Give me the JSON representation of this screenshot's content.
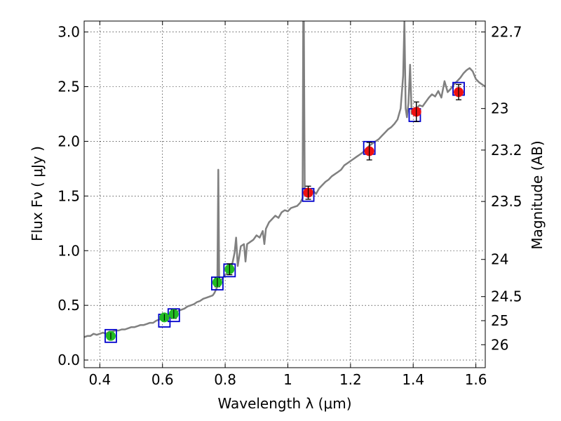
{
  "chart_data": {
    "type": "scatter",
    "xlabel": "Wavelength  λ (μm)",
    "ylabel_left": "Flux  Fν  ( μJy )",
    "ylabel_right": "Magnitude (AB)",
    "xlim": [
      0.35,
      1.63
    ],
    "ylim": [
      -0.07,
      3.1
    ],
    "grid": true,
    "x_ticks": [
      {
        "value": 0.4,
        "label": "0.4"
      },
      {
        "value": 0.6,
        "label": "0.6"
      },
      {
        "value": 0.8,
        "label": "0.8"
      },
      {
        "value": 1.0,
        "label": "1"
      },
      {
        "value": 1.2,
        "label": "1.2"
      },
      {
        "value": 1.4,
        "label": "1.4"
      },
      {
        "value": 1.6,
        "label": "1.6"
      }
    ],
    "y_ticks": [
      {
        "value": 0.0,
        "label": "0.0"
      },
      {
        "value": 0.5,
        "label": "0.5"
      },
      {
        "value": 1.0,
        "label": "1.0"
      },
      {
        "value": 1.5,
        "label": "1.5"
      },
      {
        "value": 2.0,
        "label": "2.0"
      },
      {
        "value": 2.5,
        "label": "2.5"
      },
      {
        "value": 3.0,
        "label": "3.0"
      }
    ],
    "right_ticks": [
      {
        "flux": 3.0,
        "label": "22.7"
      },
      {
        "flux": 2.3,
        "label": "23"
      },
      {
        "flux": 1.92,
        "label": "23.2"
      },
      {
        "flux": 1.45,
        "label": "23.5"
      },
      {
        "flux": 0.92,
        "label": "24"
      },
      {
        "flux": 0.58,
        "label": "24.5"
      },
      {
        "flux": 0.36,
        "label": "25"
      },
      {
        "flux": 0.14,
        "label": "26"
      }
    ],
    "series": [
      {
        "kind": "model-spectrum",
        "color": "#808080",
        "points": [
          [
            0.35,
            0.21
          ],
          [
            0.36,
            0.22
          ],
          [
            0.37,
            0.22
          ],
          [
            0.38,
            0.24
          ],
          [
            0.39,
            0.23
          ],
          [
            0.4,
            0.24
          ],
          [
            0.41,
            0.25
          ],
          [
            0.42,
            0.24
          ],
          [
            0.43,
            0.26
          ],
          [
            0.44,
            0.26
          ],
          [
            0.45,
            0.27
          ],
          [
            0.46,
            0.27
          ],
          [
            0.47,
            0.28
          ],
          [
            0.48,
            0.28
          ],
          [
            0.49,
            0.29
          ],
          [
            0.5,
            0.3
          ],
          [
            0.51,
            0.3
          ],
          [
            0.52,
            0.31
          ],
          [
            0.53,
            0.32
          ],
          [
            0.54,
            0.32
          ],
          [
            0.55,
            0.33
          ],
          [
            0.56,
            0.34
          ],
          [
            0.57,
            0.34
          ],
          [
            0.58,
            0.36
          ],
          [
            0.59,
            0.37
          ],
          [
            0.6,
            0.38
          ],
          [
            0.61,
            0.39
          ],
          [
            0.62,
            0.4
          ],
          [
            0.63,
            0.41
          ],
          [
            0.64,
            0.43
          ],
          [
            0.65,
            0.45
          ],
          [
            0.66,
            0.46
          ],
          [
            0.67,
            0.47
          ],
          [
            0.68,
            0.49
          ],
          [
            0.69,
            0.5
          ],
          [
            0.7,
            0.51
          ],
          [
            0.71,
            0.53
          ],
          [
            0.72,
            0.54
          ],
          [
            0.73,
            0.56
          ],
          [
            0.74,
            0.57
          ],
          [
            0.75,
            0.58
          ],
          [
            0.76,
            0.59
          ],
          [
            0.765,
            0.61
          ],
          [
            0.77,
            0.64
          ],
          [
            0.775,
            0.67
          ],
          [
            0.778,
            1.74
          ],
          [
            0.781,
            0.72
          ],
          [
            0.79,
            0.74
          ],
          [
            0.8,
            0.78
          ],
          [
            0.81,
            0.8
          ],
          [
            0.82,
            0.84
          ],
          [
            0.83,
            0.98
          ],
          [
            0.835,
            1.12
          ],
          [
            0.84,
            0.86
          ],
          [
            0.85,
            1.04
          ],
          [
            0.86,
            1.06
          ],
          [
            0.865,
            0.9
          ],
          [
            0.87,
            1.06
          ],
          [
            0.88,
            1.08
          ],
          [
            0.89,
            1.1
          ],
          [
            0.9,
            1.14
          ],
          [
            0.91,
            1.12
          ],
          [
            0.92,
            1.18
          ],
          [
            0.925,
            1.06
          ],
          [
            0.93,
            1.2
          ],
          [
            0.94,
            1.26
          ],
          [
            0.95,
            1.29
          ],
          [
            0.96,
            1.32
          ],
          [
            0.97,
            1.3
          ],
          [
            0.98,
            1.35
          ],
          [
            0.99,
            1.37
          ],
          [
            1.0,
            1.36
          ],
          [
            1.01,
            1.39
          ],
          [
            1.02,
            1.4
          ],
          [
            1.03,
            1.41
          ],
          [
            1.04,
            1.44
          ],
          [
            1.047,
            1.48
          ],
          [
            1.049,
            3.1
          ],
          [
            1.051,
            3.1
          ],
          [
            1.054,
            1.5
          ],
          [
            1.06,
            1.52
          ],
          [
            1.07,
            1.53
          ],
          [
            1.08,
            1.55
          ],
          [
            1.09,
            1.52
          ],
          [
            1.1,
            1.57
          ],
          [
            1.11,
            1.6
          ],
          [
            1.12,
            1.63
          ],
          [
            1.13,
            1.65
          ],
          [
            1.14,
            1.68
          ],
          [
            1.15,
            1.7
          ],
          [
            1.16,
            1.72
          ],
          [
            1.17,
            1.74
          ],
          [
            1.18,
            1.78
          ],
          [
            1.19,
            1.8
          ],
          [
            1.2,
            1.82
          ],
          [
            1.21,
            1.84
          ],
          [
            1.22,
            1.86
          ],
          [
            1.23,
            1.88
          ],
          [
            1.24,
            1.9
          ],
          [
            1.25,
            1.93
          ],
          [
            1.26,
            1.96
          ],
          [
            1.27,
            1.98
          ],
          [
            1.28,
            2.0
          ],
          [
            1.29,
            2.02
          ],
          [
            1.3,
            2.05
          ],
          [
            1.31,
            2.08
          ],
          [
            1.32,
            2.11
          ],
          [
            1.33,
            2.13
          ],
          [
            1.34,
            2.16
          ],
          [
            1.35,
            2.2
          ],
          [
            1.36,
            2.3
          ],
          [
            1.368,
            2.6
          ],
          [
            1.372,
            3.1
          ],
          [
            1.376,
            2.3
          ],
          [
            1.38,
            2.22
          ],
          [
            1.385,
            2.35
          ],
          [
            1.39,
            2.7
          ],
          [
            1.395,
            2.25
          ],
          [
            1.4,
            2.28
          ],
          [
            1.41,
            2.3
          ],
          [
            1.42,
            2.33
          ],
          [
            1.43,
            2.32
          ],
          [
            1.44,
            2.36
          ],
          [
            1.45,
            2.4
          ],
          [
            1.46,
            2.43
          ],
          [
            1.47,
            2.41
          ],
          [
            1.48,
            2.46
          ],
          [
            1.49,
            2.4
          ],
          [
            1.5,
            2.55
          ],
          [
            1.51,
            2.45
          ],
          [
            1.52,
            2.48
          ],
          [
            1.53,
            2.52
          ],
          [
            1.54,
            2.55
          ],
          [
            1.55,
            2.58
          ],
          [
            1.56,
            2.62
          ],
          [
            1.57,
            2.65
          ],
          [
            1.58,
            2.67
          ],
          [
            1.59,
            2.64
          ],
          [
            1.6,
            2.57
          ],
          [
            1.61,
            2.54
          ],
          [
            1.62,
            2.52
          ],
          [
            1.63,
            2.5
          ]
        ]
      },
      {
        "kind": "model-bandpass",
        "color": "#0000cc",
        "points": [
          {
            "x": 0.435,
            "y": 0.22
          },
          {
            "x": 0.606,
            "y": 0.36
          },
          {
            "x": 0.636,
            "y": 0.41
          },
          {
            "x": 0.775,
            "y": 0.7
          },
          {
            "x": 0.814,
            "y": 0.82
          },
          {
            "x": 1.065,
            "y": 1.51
          },
          {
            "x": 1.26,
            "y": 1.94
          },
          {
            "x": 1.405,
            "y": 2.24
          },
          {
            "x": 1.545,
            "y": 2.48
          }
        ]
      },
      {
        "kind": "observed-optical",
        "color": "#22bb22",
        "points": [
          {
            "x": 0.435,
            "y": 0.22,
            "err": 0.03
          },
          {
            "x": 0.606,
            "y": 0.39,
            "err": 0.03
          },
          {
            "x": 0.636,
            "y": 0.42,
            "err": 0.04
          },
          {
            "x": 0.775,
            "y": 0.71,
            "err": 0.04
          },
          {
            "x": 0.814,
            "y": 0.83,
            "err": 0.05
          }
        ]
      },
      {
        "kind": "observed-infrared",
        "color": "#ee1111",
        "points": [
          {
            "x": 1.065,
            "y": 1.53,
            "err": 0.06
          },
          {
            "x": 1.26,
            "y": 1.91,
            "err": 0.08
          },
          {
            "x": 1.41,
            "y": 2.27,
            "err": 0.09
          },
          {
            "x": 1.545,
            "y": 2.45,
            "err": 0.07
          }
        ]
      }
    ]
  }
}
